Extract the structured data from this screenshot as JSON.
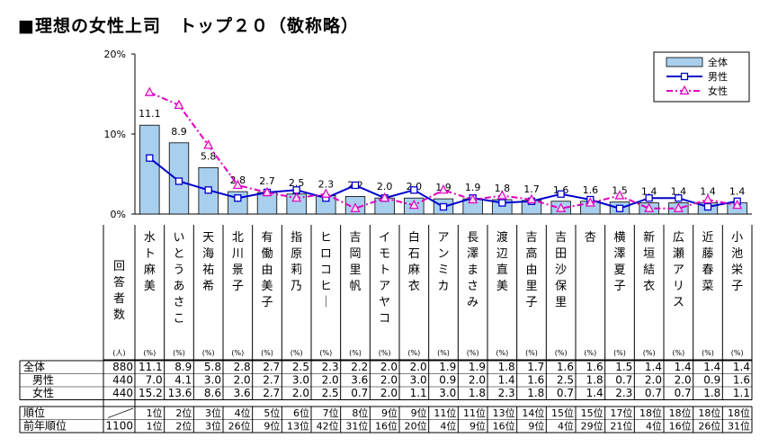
{
  "title": "■理想の女性上司　トップ２０（敬称略）",
  "chart_data": {
    "type": "bar",
    "title": "理想の女性上司　トップ２０（敬称略）",
    "ylim": [
      0,
      20
    ],
    "yticks": [
      "0%",
      "10%",
      "20%"
    ],
    "categories": [
      "水ト麻美",
      "いとうあさこ",
      "天海祐希",
      "北川景子",
      "有働由美子",
      "指原莉乃",
      "ヒロコヒー",
      "吉岡里帆",
      "イモトアヤコ",
      "白石麻衣",
      "アンミカ",
      "長澤まさみ",
      "渡辺直美",
      "吉高由里子",
      "吉田沙保里",
      "杏",
      "横澤夏子",
      "新垣結衣",
      "広瀬アリス",
      "近藤春菜",
      "小池栄子"
    ],
    "series": [
      {
        "name": "全体",
        "values": [
          11.1,
          8.9,
          5.8,
          2.8,
          2.7,
          2.5,
          2.3,
          2.2,
          2.0,
          2.0,
          1.9,
          1.9,
          1.8,
          1.7,
          1.6,
          1.6,
          1.5,
          1.4,
          1.4,
          1.4,
          1.4
        ]
      },
      {
        "name": "男性",
        "values": [
          7.0,
          4.1,
          3.0,
          2.0,
          2.7,
          3.0,
          2.0,
          3.6,
          2.0,
          3.0,
          0.9,
          2.0,
          1.4,
          1.6,
          2.5,
          1.8,
          0.7,
          2.0,
          2.0,
          0.9,
          1.6
        ]
      },
      {
        "name": "女性",
        "values": [
          15.2,
          13.6,
          8.6,
          3.6,
          2.7,
          2.0,
          2.5,
          0.7,
          2.0,
          1.1,
          3.0,
          1.8,
          2.3,
          1.8,
          0.7,
          1.4,
          2.3,
          0.7,
          0.7,
          1.8,
          1.1
        ]
      }
    ],
    "legend": [
      "全体",
      "男性",
      "女性"
    ],
    "legend_position": "top-right"
  },
  "table": {
    "header_label": "回答者数",
    "unit_count": "(人)",
    "unit_pct": "(%)",
    "rows": [
      {
        "label": "全体",
        "count": "880",
        "values": [
          "11.1",
          "8.9",
          "5.8",
          "2.8",
          "2.7",
          "2.5",
          "2.3",
          "2.2",
          "2.0",
          "2.0",
          "1.9",
          "1.9",
          "1.8",
          "1.7",
          "1.6",
          "1.6",
          "1.5",
          "1.4",
          "1.4",
          "1.4",
          "1.4"
        ]
      },
      {
        "label": "男性",
        "count": "440",
        "values": [
          "7.0",
          "4.1",
          "3.0",
          "2.0",
          "2.7",
          "3.0",
          "2.0",
          "3.6",
          "2.0",
          "3.0",
          "0.9",
          "2.0",
          "1.4",
          "1.6",
          "2.5",
          "1.8",
          "0.7",
          "2.0",
          "2.0",
          "0.9",
          "1.6"
        ]
      },
      {
        "label": "女性",
        "count": "440",
        "values": [
          "15.2",
          "13.6",
          "8.6",
          "3.6",
          "2.7",
          "2.0",
          "2.5",
          "0.7",
          "2.0",
          "1.1",
          "3.0",
          "1.8",
          "2.3",
          "1.8",
          "0.7",
          "1.4",
          "2.3",
          "0.7",
          "0.7",
          "1.8",
          "1.1"
        ]
      }
    ],
    "rank_row": {
      "label": "順位",
      "count": "",
      "values": [
        "1位",
        "2位",
        "3位",
        "4位",
        "5位",
        "6位",
        "7位",
        "8位",
        "9位",
        "9位",
        "11位",
        "11位",
        "13位",
        "14位",
        "15位",
        "15位",
        "17位",
        "18位",
        "18位",
        "18位",
        "18位"
      ]
    },
    "prev_rank_row": {
      "label": "前年順位",
      "count": "1100",
      "values": [
        "1位",
        "2位",
        "3位",
        "26位",
        "9位",
        "13位",
        "42位",
        "31位",
        "16位",
        "20位",
        "4位",
        "9位",
        "16位",
        "9位",
        "4位",
        "29位",
        "21位",
        "4位",
        "16位",
        "26位",
        "31位"
      ]
    }
  },
  "colors": {
    "bar_fill": "#a9cfee",
    "bar_stroke": "#000000",
    "male_line": "#0000cc",
    "female_line": "#e000c0"
  }
}
